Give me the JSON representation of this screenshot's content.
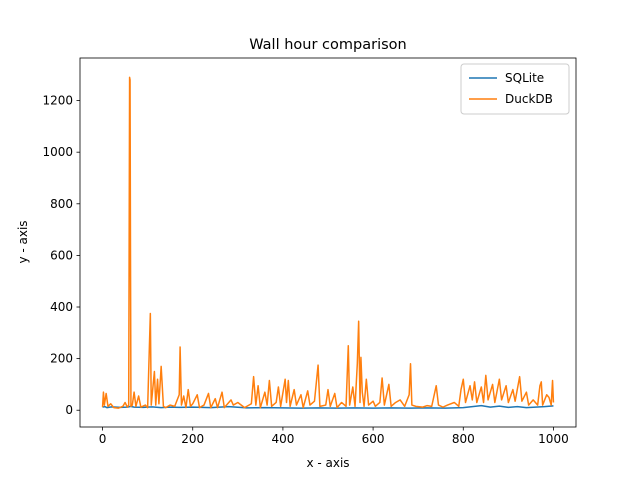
{
  "chart_data": {
    "type": "line",
    "title": "Wall hour comparison",
    "xlabel": "x - axis",
    "ylabel": "y - axis",
    "xlim": [
      -50,
      1050
    ],
    "ylim": [
      -65,
      1365
    ],
    "xticks": [
      0,
      200,
      400,
      600,
      800,
      1000
    ],
    "yticks": [
      0,
      200,
      400,
      600,
      800,
      1000,
      1200
    ],
    "grid": false,
    "legend_position": "top-right",
    "series": [
      {
        "name": "SQLite",
        "color": "#1f77b4",
        "points": [
          [
            0,
            12
          ],
          [
            5,
            14
          ],
          [
            10,
            10
          ],
          [
            20,
            13
          ],
          [
            40,
            11
          ],
          [
            55,
            12
          ],
          [
            58,
            13
          ],
          [
            62,
            15
          ],
          [
            70,
            12
          ],
          [
            90,
            11
          ],
          [
            110,
            13
          ],
          [
            130,
            10
          ],
          [
            150,
            12
          ],
          [
            170,
            11
          ],
          [
            200,
            12
          ],
          [
            240,
            10
          ],
          [
            280,
            14
          ],
          [
            320,
            9
          ],
          [
            360,
            10
          ],
          [
            400,
            9
          ],
          [
            440,
            8
          ],
          [
            480,
            9
          ],
          [
            520,
            8
          ],
          [
            560,
            9
          ],
          [
            600,
            8
          ],
          [
            640,
            9
          ],
          [
            680,
            8
          ],
          [
            720,
            9
          ],
          [
            760,
            8
          ],
          [
            800,
            10
          ],
          [
            820,
            14
          ],
          [
            840,
            18
          ],
          [
            860,
            12
          ],
          [
            880,
            16
          ],
          [
            900,
            11
          ],
          [
            920,
            14
          ],
          [
            940,
            10
          ],
          [
            960,
            12
          ],
          [
            980,
            14
          ],
          [
            1000,
            17
          ]
        ]
      },
      {
        "name": "DuckDB",
        "color": "#ff7f0e",
        "points": [
          [
            0,
            12
          ],
          [
            2,
            70
          ],
          [
            4,
            20
          ],
          [
            8,
            65
          ],
          [
            12,
            15
          ],
          [
            18,
            25
          ],
          [
            25,
            10
          ],
          [
            35,
            8
          ],
          [
            45,
            15
          ],
          [
            50,
            30
          ],
          [
            55,
            12
          ],
          [
            58,
            20
          ],
          [
            60,
            1290
          ],
          [
            61,
            1280
          ],
          [
            62,
            600
          ],
          [
            63,
            15
          ],
          [
            66,
            20
          ],
          [
            70,
            70
          ],
          [
            74,
            15
          ],
          [
            80,
            55
          ],
          [
            85,
            12
          ],
          [
            95,
            20
          ],
          [
            100,
            10
          ],
          [
            106,
            375
          ],
          [
            108,
            20
          ],
          [
            115,
            150
          ],
          [
            118,
            20
          ],
          [
            122,
            120
          ],
          [
            125,
            25
          ],
          [
            130,
            170
          ],
          [
            135,
            15
          ],
          [
            140,
            10
          ],
          [
            150,
            20
          ],
          [
            160,
            15
          ],
          [
            170,
            60
          ],
          [
            172,
            245
          ],
          [
            175,
            20
          ],
          [
            180,
            55
          ],
          [
            185,
            10
          ],
          [
            190,
            80
          ],
          [
            195,
            15
          ],
          [
            200,
            25
          ],
          [
            210,
            60
          ],
          [
            215,
            10
          ],
          [
            225,
            20
          ],
          [
            235,
            65
          ],
          [
            240,
            10
          ],
          [
            250,
            45
          ],
          [
            255,
            10
          ],
          [
            265,
            70
          ],
          [
            270,
            10
          ],
          [
            285,
            40
          ],
          [
            290,
            20
          ],
          [
            300,
            30
          ],
          [
            315,
            10
          ],
          [
            330,
            25
          ],
          [
            335,
            130
          ],
          [
            340,
            20
          ],
          [
            345,
            95
          ],
          [
            350,
            10
          ],
          [
            360,
            70
          ],
          [
            365,
            20
          ],
          [
            370,
            115
          ],
          [
            375,
            15
          ],
          [
            385,
            30
          ],
          [
            390,
            90
          ],
          [
            395,
            15
          ],
          [
            405,
            120
          ],
          [
            408,
            30
          ],
          [
            412,
            115
          ],
          [
            416,
            15
          ],
          [
            425,
            80
          ],
          [
            430,
            20
          ],
          [
            440,
            60
          ],
          [
            445,
            10
          ],
          [
            455,
            75
          ],
          [
            460,
            20
          ],
          [
            470,
            35
          ],
          [
            478,
            175
          ],
          [
            482,
            15
          ],
          [
            495,
            20
          ],
          [
            500,
            80
          ],
          [
            505,
            15
          ],
          [
            515,
            65
          ],
          [
            520,
            10
          ],
          [
            530,
            30
          ],
          [
            540,
            15
          ],
          [
            545,
            250
          ],
          [
            548,
            20
          ],
          [
            555,
            90
          ],
          [
            560,
            15
          ],
          [
            565,
            180
          ],
          [
            568,
            345
          ],
          [
            571,
            30
          ],
          [
            573,
            205
          ],
          [
            576,
            70
          ],
          [
            580,
            15
          ],
          [
            585,
            120
          ],
          [
            590,
            20
          ],
          [
            600,
            35
          ],
          [
            605,
            15
          ],
          [
            615,
            30
          ],
          [
            620,
            125
          ],
          [
            625,
            20
          ],
          [
            635,
            100
          ],
          [
            640,
            15
          ],
          [
            650,
            30
          ],
          [
            660,
            40
          ],
          [
            670,
            15
          ],
          [
            680,
            60
          ],
          [
            683,
            180
          ],
          [
            686,
            20
          ],
          [
            695,
            15
          ],
          [
            710,
            12
          ],
          [
            720,
            18
          ],
          [
            730,
            15
          ],
          [
            740,
            95
          ],
          [
            745,
            20
          ],
          [
            755,
            12
          ],
          [
            765,
            20
          ],
          [
            780,
            30
          ],
          [
            790,
            15
          ],
          [
            795,
            80
          ],
          [
            800,
            120
          ],
          [
            805,
            30
          ],
          [
            815,
            95
          ],
          [
            820,
            40
          ],
          [
            825,
            110
          ],
          [
            830,
            30
          ],
          [
            840,
            90
          ],
          [
            845,
            30
          ],
          [
            850,
            135
          ],
          [
            855,
            40
          ],
          [
            865,
            100
          ],
          [
            870,
            30
          ],
          [
            880,
            120
          ],
          [
            885,
            40
          ],
          [
            895,
            95
          ],
          [
            900,
            30
          ],
          [
            910,
            80
          ],
          [
            915,
            35
          ],
          [
            925,
            130
          ],
          [
            930,
            35
          ],
          [
            940,
            70
          ],
          [
            945,
            20
          ],
          [
            955,
            40
          ],
          [
            965,
            20
          ],
          [
            970,
            95
          ],
          [
            973,
            110
          ],
          [
            976,
            20
          ],
          [
            985,
            60
          ],
          [
            990,
            50
          ],
          [
            995,
            20
          ],
          [
            998,
            115
          ],
          [
            1000,
            30
          ]
        ]
      }
    ]
  }
}
